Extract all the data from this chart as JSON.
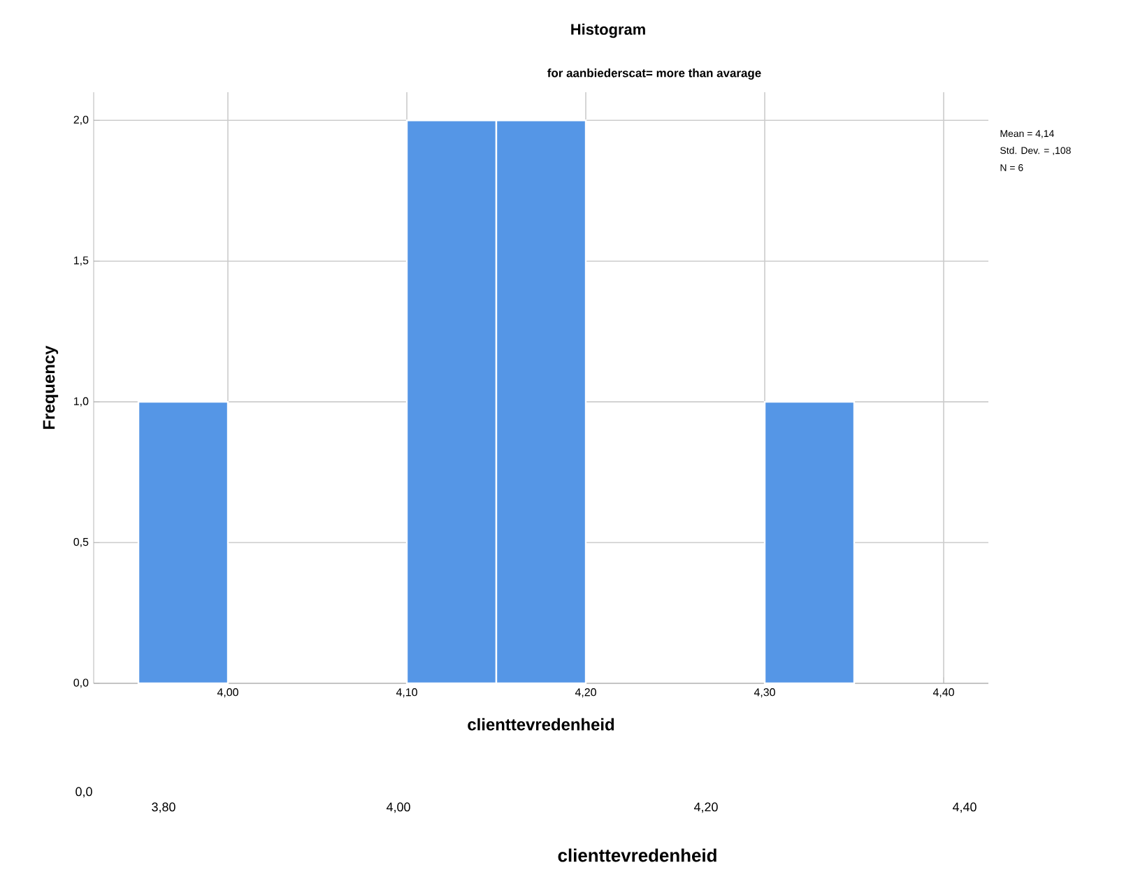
{
  "chart_data": {
    "type": "histogram",
    "title": "Histogram",
    "subtitle": "for aanbiederscat= more than avarage",
    "xlabel": "clienttevredenheid",
    "ylabel": "Frequency",
    "bins": [
      3.95,
      4.0,
      4.05,
      4.1,
      4.15,
      4.2,
      4.25,
      4.3,
      4.35
    ],
    "values": [
      1,
      0,
      0,
      2,
      2,
      0,
      0,
      1
    ],
    "color": "#5596e6",
    "xlim": [
      3.925,
      4.425
    ],
    "xticks": [
      {
        "value": 4.0,
        "label": "4,00"
      },
      {
        "value": 4.1,
        "label": "4,10"
      },
      {
        "value": 4.2,
        "label": "4,20"
      },
      {
        "value": 4.3,
        "label": "4,30"
      },
      {
        "value": 4.4,
        "label": "4,40"
      }
    ],
    "ylim": [
      0,
      2.1
    ],
    "yticks": [
      {
        "value": 0,
        "label": "0,0"
      },
      {
        "value": 0.5,
        "label": "0,5"
      },
      {
        "value": 1,
        "label": "1,0"
      },
      {
        "value": 1.5,
        "label": "1,5"
      },
      {
        "value": 2,
        "label": "2,0"
      }
    ],
    "grid": true,
    "annotations": [
      "Mean = 4,14",
      "Std. Dev. = ,108",
      "N = 6",
      "0,0",
      "3,80",
      "4,00",
      "4,20",
      "4,40",
      "clienttevredenheid"
    ]
  }
}
